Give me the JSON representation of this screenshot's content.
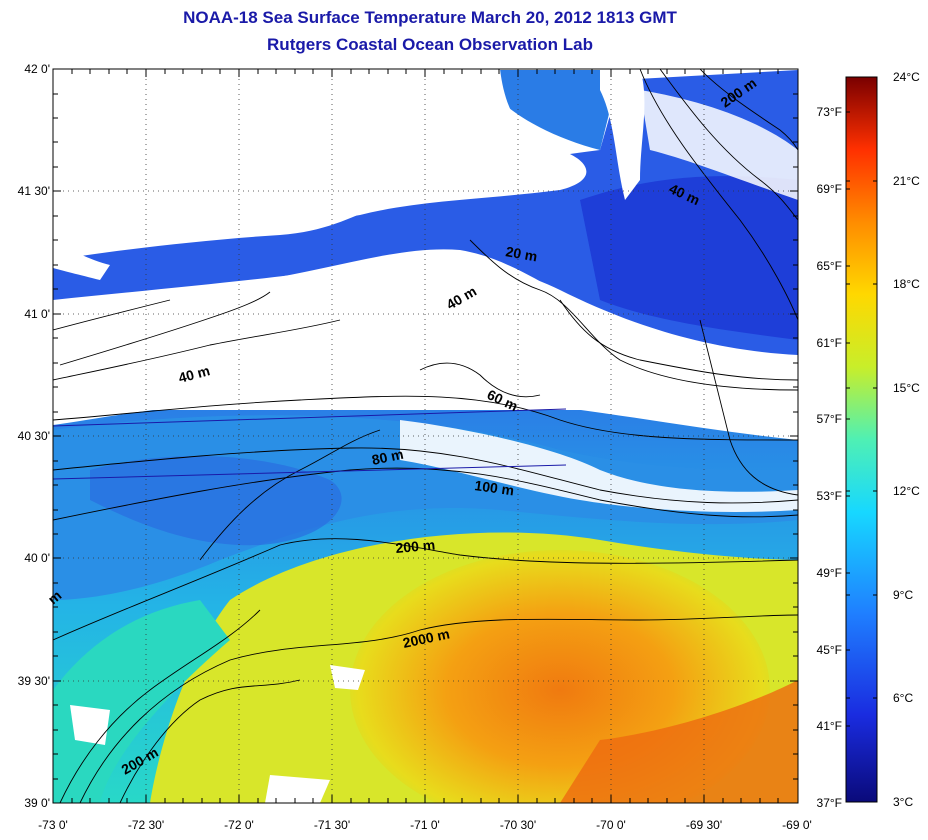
{
  "title_line1": "NOAA-18 Sea Surface Temperature March 20, 2012 1813 GMT",
  "title_line2": "Rutgers Coastal Ocean Observation Lab",
  "lat_ticks": [
    "42 0'",
    "41 30'",
    "41 0'",
    "40 30'",
    "40 0'",
    "39 30'",
    "39 0'"
  ],
  "lon_ticks": [
    "-73 0'",
    "-72 30'",
    "-72 0'",
    "-71 30'",
    "-71 0'",
    "-70 30'",
    "-70 0'",
    "-69 30'",
    "-69 0'"
  ],
  "fahrenheit_ticks": [
    "73°F",
    "69°F",
    "65°F",
    "61°F",
    "57°F",
    "53°F",
    "49°F",
    "45°F",
    "41°F",
    "37°F"
  ],
  "celsius_ticks": [
    "24°C",
    "21°C",
    "18°C",
    "15°C",
    "12°C",
    "9°C",
    "6°C",
    "3°C"
  ],
  "colorbar": {
    "min_c": 3,
    "max_c": 24,
    "stops": [
      "#0a0a7a",
      "#1a2ce0",
      "#1f7fff",
      "#17d8ff",
      "#4ff0b4",
      "#c8ee2a",
      "#ffd800",
      "#ff8c00",
      "#ff3000",
      "#b40000",
      "#7a0000"
    ]
  },
  "contours": [
    "200 m",
    "40 m",
    "20 m",
    "40 m",
    "40 m",
    "60 m",
    "80 m",
    "100 m",
    "200 m",
    "2000 m",
    "200 m",
    "m"
  ],
  "map_colors": {
    "cold": "#2a5ce6",
    "cool": "#2aa8e6",
    "mid": "#22d6cf",
    "warm": "#e8e21a",
    "hot": "#f08c10",
    "cloud": "#ffffff",
    "land": "#ffffff"
  }
}
